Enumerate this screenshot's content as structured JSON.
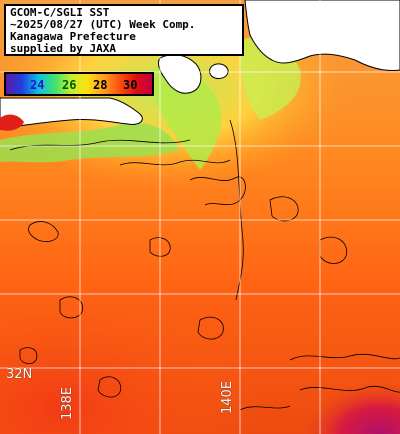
{
  "title": {
    "line1": "GCOM-C/SGLI SST",
    "line2": "~2025/08/27 (UTC) Week Comp.",
    "line3": "Kanagawa Prefecture",
    "line4": "supplied by JAXA"
  },
  "legend": {
    "ticks": [
      "24",
      "26",
      "28",
      "30"
    ],
    "tick_colors": [
      "#1a1ad0",
      "#005a00",
      "#000000",
      "#000000"
    ],
    "gradient": [
      "#5a1aa0",
      "#2040e0",
      "#10c0e0",
      "#40e070",
      "#c0f030",
      "#ffe010",
      "#ffa020",
      "#ff5010",
      "#e01010",
      "#c00040"
    ]
  },
  "grid_labels": {
    "lat_32": "32N",
    "lon_138": "138E",
    "lon_140": "140E"
  },
  "colors": {
    "land": "#ffffff",
    "warm": "#ff6a10",
    "warmer": "#f03a12",
    "cool": "#8ee060",
    "mid": "#ffae30",
    "hot": "#c0187a",
    "grid": "#ffffff",
    "coast": "#000000"
  }
}
